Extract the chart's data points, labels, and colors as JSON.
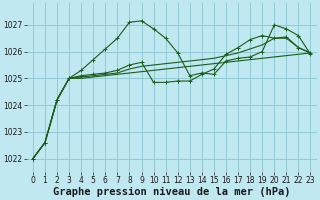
{
  "title": "Graphe pression niveau de la mer (hPa)",
  "bg_color": "#c0e8f0",
  "grid_color": "#88c4d0",
  "line_color": "#1a5c1a",
  "xlim": [
    -0.5,
    23.5
  ],
  "ylim": [
    1021.5,
    1027.8
  ],
  "yticks": [
    1022,
    1023,
    1024,
    1025,
    1026,
    1027
  ],
  "xticks": [
    0,
    1,
    2,
    3,
    4,
    5,
    6,
    7,
    8,
    9,
    10,
    11,
    12,
    13,
    14,
    15,
    16,
    17,
    18,
    19,
    20,
    21,
    22,
    23
  ],
  "series_marked": [
    [
      1022.0,
      1022.6,
      1024.2,
      1025.0,
      1025.3,
      1025.7,
      1026.1,
      1026.5,
      1027.1,
      1027.15,
      1026.85,
      1026.5,
      1025.95,
      1025.1,
      1025.2,
      1025.15,
      1025.65,
      1025.75,
      1025.8,
      1026.0,
      1027.0,
      1026.85,
      1026.6,
      1025.9
    ],
    [
      1022.0,
      1022.6,
      1024.2,
      1025.0,
      1025.1,
      1025.15,
      1025.2,
      1025.3,
      1025.5,
      1025.6,
      1024.85,
      1024.85,
      1024.9,
      1024.9,
      1025.15,
      1025.35,
      1025.9,
      1026.15,
      1026.45,
      1026.6,
      1026.5,
      1026.55,
      1026.15,
      1025.95
    ]
  ],
  "series_plain": [
    [
      1022.0,
      1022.6,
      1024.2,
      1025.0,
      1025.0,
      1025.05,
      1025.1,
      1025.15,
      1025.2,
      1025.25,
      1025.3,
      1025.35,
      1025.4,
      1025.45,
      1025.5,
      1025.55,
      1025.6,
      1025.65,
      1025.7,
      1025.75,
      1025.8,
      1025.85,
      1025.9,
      1025.95
    ],
    [
      1022.0,
      1022.6,
      1024.2,
      1025.0,
      1025.05,
      1025.1,
      1025.15,
      1025.2,
      1025.35,
      1025.45,
      1025.5,
      1025.55,
      1025.6,
      1025.65,
      1025.7,
      1025.75,
      1025.85,
      1025.95,
      1026.1,
      1026.25,
      1026.5,
      1026.5,
      1026.15,
      1025.95
    ]
  ],
  "title_fontsize": 7.5,
  "tick_fontsize": 5.5
}
